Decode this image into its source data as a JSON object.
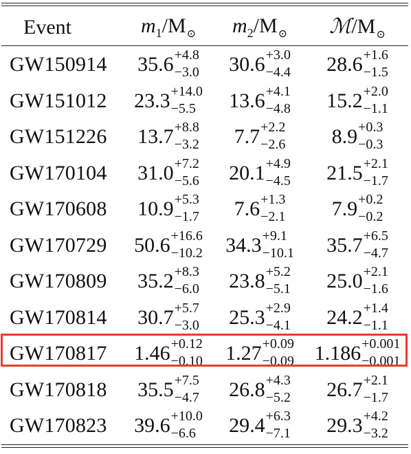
{
  "table": {
    "headers": {
      "event": "Event",
      "m1": "m",
      "m1_index": "1",
      "m2": "m",
      "m2_index": "2",
      "chirp": "ℳ",
      "unit": "/M",
      "sun": "⊙"
    },
    "rows": [
      {
        "event": "GW150914",
        "m1": {
          "v": "35.6",
          "p": "+4.8",
          "m": "−3.0"
        },
        "m2": {
          "v": "30.6",
          "p": "+3.0",
          "m": "−4.4"
        },
        "chirp": {
          "v": "28.6",
          "p": "+1.6",
          "m": "−1.5"
        }
      },
      {
        "event": "GW151012",
        "m1": {
          "v": "23.3",
          "p": "+14.0",
          "m": "−5.5"
        },
        "m2": {
          "v": "13.6",
          "p": "+4.1",
          "m": "−4.8"
        },
        "chirp": {
          "v": "15.2",
          "p": "+2.0",
          "m": "−1.1"
        }
      },
      {
        "event": "GW151226",
        "m1": {
          "v": "13.7",
          "p": "+8.8",
          "m": "−3.2"
        },
        "m2": {
          "v": "7.7",
          "p": "+2.2",
          "m": "−2.6"
        },
        "chirp": {
          "v": "8.9",
          "p": "+0.3",
          "m": "−0.3"
        }
      },
      {
        "event": "GW170104",
        "m1": {
          "v": "31.0",
          "p": "+7.2",
          "m": "−5.6"
        },
        "m2": {
          "v": "20.1",
          "p": "+4.9",
          "m": "−4.5"
        },
        "chirp": {
          "v": "21.5",
          "p": "+2.1",
          "m": "−1.7"
        }
      },
      {
        "event": "GW170608",
        "m1": {
          "v": "10.9",
          "p": "+5.3",
          "m": "−1.7"
        },
        "m2": {
          "v": "7.6",
          "p": "+1.3",
          "m": "−2.1"
        },
        "chirp": {
          "v": "7.9",
          "p": "+0.2",
          "m": "−0.2"
        }
      },
      {
        "event": "GW170729",
        "m1": {
          "v": "50.6",
          "p": "+16.6",
          "m": "−10.2"
        },
        "m2": {
          "v": "34.3",
          "p": "+9.1",
          "m": "−10.1"
        },
        "chirp": {
          "v": "35.7",
          "p": "+6.5",
          "m": "−4.7"
        }
      },
      {
        "event": "GW170809",
        "m1": {
          "v": "35.2",
          "p": "+8.3",
          "m": "−6.0"
        },
        "m2": {
          "v": "23.8",
          "p": "+5.2",
          "m": "−5.1"
        },
        "chirp": {
          "v": "25.0",
          "p": "+2.1",
          "m": "−1.6"
        }
      },
      {
        "event": "GW170814",
        "m1": {
          "v": "30.7",
          "p": "+5.7",
          "m": "−3.0"
        },
        "m2": {
          "v": "25.3",
          "p": "+2.9",
          "m": "−4.1"
        },
        "chirp": {
          "v": "24.2",
          "p": "+1.4",
          "m": "−1.1"
        }
      },
      {
        "event": "GW170817",
        "m1": {
          "v": "1.46",
          "p": "+0.12",
          "m": "−0.10"
        },
        "m2": {
          "v": "1.27",
          "p": "+0.09",
          "m": "−0.09"
        },
        "chirp": {
          "v": "1.186",
          "p": "+0.001",
          "m": "−0.001"
        }
      },
      {
        "event": "GW170818",
        "m1": {
          "v": "35.5",
          "p": "+7.5",
          "m": "−4.7"
        },
        "m2": {
          "v": "26.8",
          "p": "+4.3",
          "m": "−5.2"
        },
        "chirp": {
          "v": "26.7",
          "p": "+2.1",
          "m": "−1.7"
        }
      },
      {
        "event": "GW170823",
        "m1": {
          "v": "39.6",
          "p": "+10.0",
          "m": "−6.6"
        },
        "m2": {
          "v": "29.4",
          "p": "+6.3",
          "m": "−7.1"
        },
        "chirp": {
          "v": "29.3",
          "p": "+4.2",
          "m": "−3.2"
        }
      }
    ],
    "highlighted_event": "GW170817",
    "highlight_color": "#e2402a"
  }
}
